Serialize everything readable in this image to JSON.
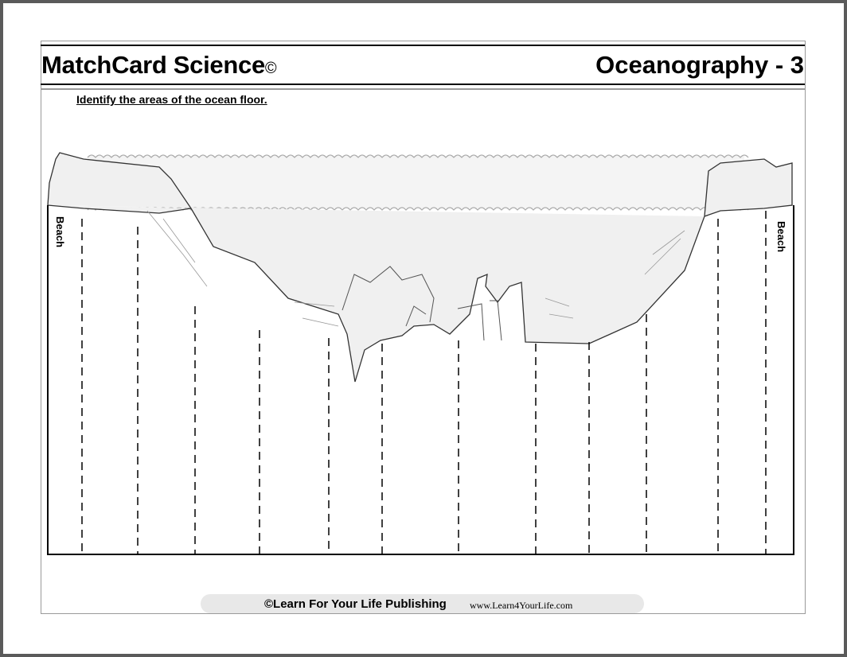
{
  "header": {
    "series_title": "MatchCard Science",
    "copyright_mark": "©",
    "topic_title": "Oceanography - 3"
  },
  "instructions": "Identify the areas of the ocean floor.",
  "diagram": {
    "left_label": "Beach",
    "right_label": "Beach",
    "label_line_count": 12
  },
  "footer": {
    "publisher": "©Learn For Your Life Publishing",
    "website": "www.Learn4YourLife.com"
  }
}
